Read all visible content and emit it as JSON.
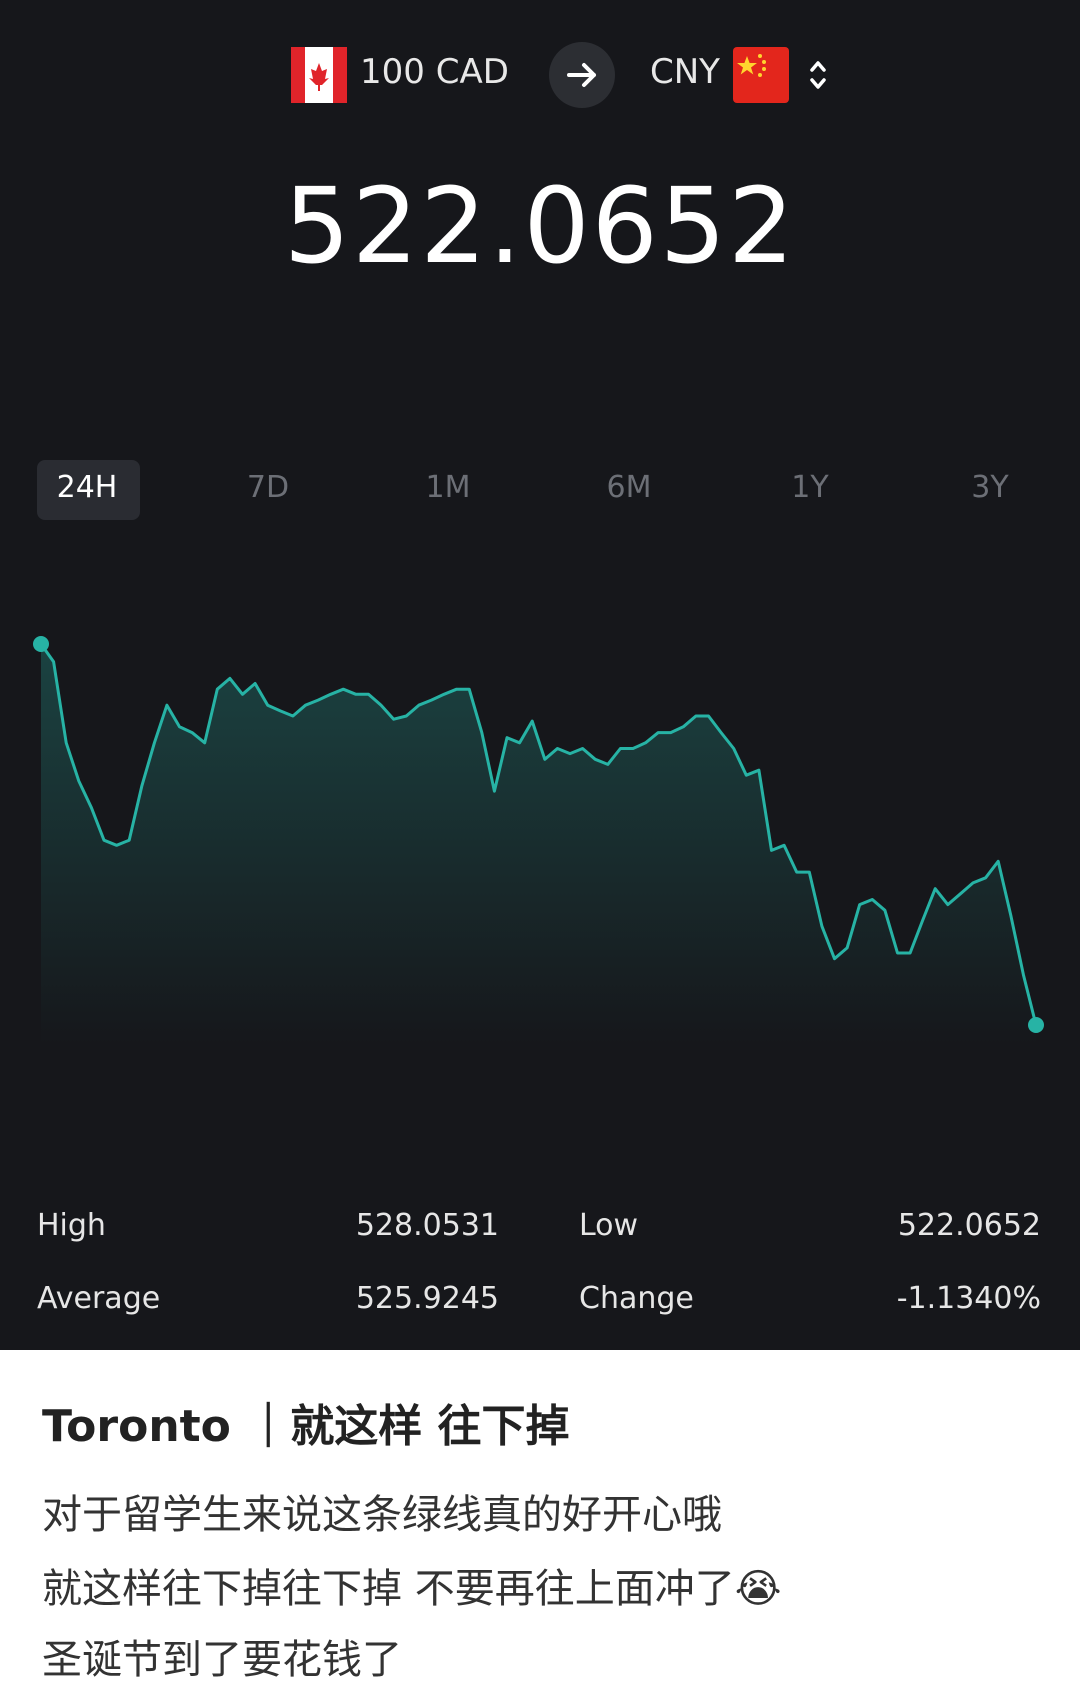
{
  "header": {
    "from": "100 CAD",
    "to": "CNY"
  },
  "amount": "522.0652",
  "tabs": [
    "24H",
    "7D",
    "1M",
    "6M",
    "1Y",
    "3Y"
  ],
  "chart_data": {
    "type": "line",
    "color": "#27b3a5",
    "values": [
      528.05,
      527.77,
      526.5,
      525.9,
      525.48,
      524.97,
      524.89,
      524.97,
      525.82,
      526.5,
      527.09,
      526.75,
      526.66,
      526.5,
      527.34,
      527.51,
      527.26,
      527.43,
      527.09,
      527.0,
      526.92,
      527.09,
      527.17,
      527.26,
      527.34,
      527.26,
      527.26,
      527.09,
      526.87,
      526.92,
      527.09,
      527.17,
      527.26,
      527.34,
      527.34,
      526.66,
      525.74,
      526.58,
      526.5,
      526.84,
      526.24,
      526.41,
      526.33,
      526.41,
      526.24,
      526.16,
      526.41,
      526.41,
      526.5,
      526.66,
      526.66,
      526.75,
      526.92,
      526.92,
      526.66,
      526.41,
      525.99,
      526.07,
      524.81,
      524.89,
      524.47,
      524.47,
      523.62,
      523.11,
      523.28,
      523.96,
      524.04,
      523.87,
      523.2,
      523.2,
      523.71,
      524.21,
      523.96,
      524.13,
      524.3,
      524.38,
      524.64,
      523.79,
      522.86,
      522.07
    ]
  },
  "stats": [
    {
      "label": "High",
      "value": "528.0531"
    },
    {
      "label": "Low",
      "value": "522.0652"
    },
    {
      "label": "Average",
      "value": "525.9245"
    },
    {
      "label": "Change",
      "value": "-1.1340%"
    }
  ],
  "post": {
    "title": "Toronto ｜就这样 往下掉",
    "lines": [
      "对于留学生来说这条绿线真的好开心哦",
      "就这样往下掉往下掉 不要再往上面冲了😭",
      "圣诞节到了要花钱了"
    ]
  }
}
